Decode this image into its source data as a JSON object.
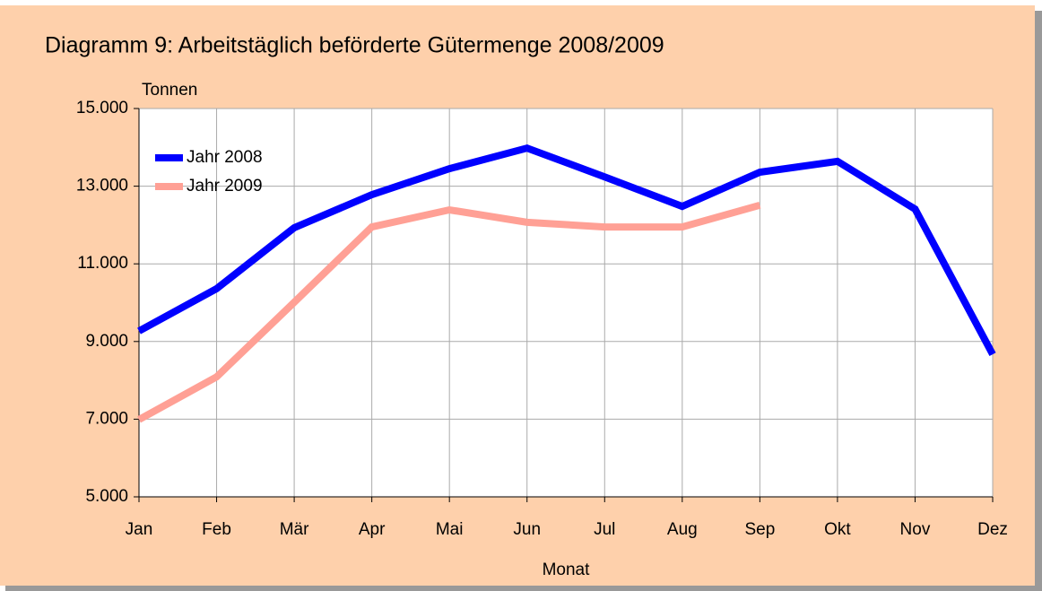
{
  "chart_data": {
    "type": "line",
    "title": "Diagramm 9:  Arbeitstäglich beförderte Gütermenge 2008/2009",
    "y_label": "Tonnen",
    "x_label": "Monat",
    "categories": [
      "Jan",
      "Feb",
      "Mär",
      "Apr",
      "Mai",
      "Jun",
      "Jul",
      "Aug",
      "Sep",
      "Okt",
      "Nov",
      "Dez"
    ],
    "series": [
      {
        "name": "Jahr 2008",
        "color": "#0000ff",
        "values": [
          9270,
          10360,
          11930,
          12780,
          13450,
          13980,
          13240,
          12480,
          13360,
          13640,
          12410,
          8670
        ]
      },
      {
        "name": "Jahr 2009",
        "color": "#ffa095",
        "values": [
          6990,
          8090,
          10010,
          11950,
          12390,
          12070,
          11950,
          11950,
          12510,
          null,
          null,
          null
        ]
      }
    ],
    "ylim": [
      5000,
      15000
    ],
    "yticks": [
      {
        "value": 5000,
        "label": "5.000"
      },
      {
        "value": 7000,
        "label": "7.000"
      },
      {
        "value": 9000,
        "label": "9.000"
      },
      {
        "value": 11000,
        "label": "11.000"
      },
      {
        "value": 13000,
        "label": "13.000"
      },
      {
        "value": 15000,
        "label": "15.000"
      }
    ],
    "grid": true,
    "legend": "upper left"
  }
}
